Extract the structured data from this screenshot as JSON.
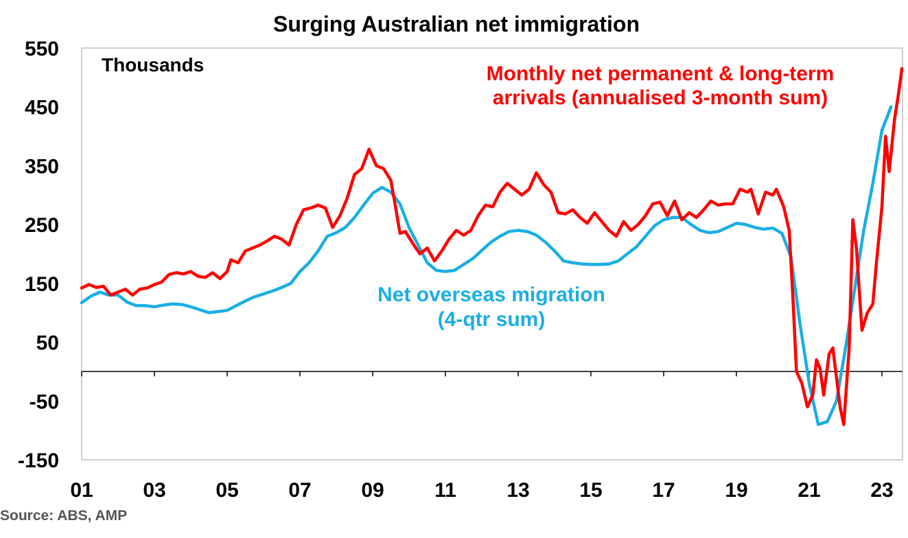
{
  "chart_data": {
    "type": "line",
    "title": "Surging Australian net immigration",
    "unit_label": "Thousands",
    "ylim": [
      -150,
      550
    ],
    "xlim": [
      2001.0,
      2023.6
    ],
    "yticks": [
      "550",
      "450",
      "350",
      "250",
      "150",
      "50",
      "-50",
      "-150"
    ],
    "ytick_values": [
      550,
      450,
      350,
      250,
      150,
      50,
      -50,
      -150
    ],
    "xticks": [
      "01",
      "03",
      "05",
      "07",
      "09",
      "11",
      "13",
      "15",
      "17",
      "19",
      "21",
      "23"
    ],
    "xtick_values": [
      2001,
      2003,
      2005,
      2007,
      2009,
      2011,
      2013,
      2015,
      2017,
      2019,
      2021,
      2023
    ],
    "grid": false,
    "series": [
      {
        "name": "Monthly net permanent & long-term arrivals (annualised 3-month sum)",
        "color": "#ff0000",
        "points": [
          [
            2001.0,
            142
          ],
          [
            2001.2,
            148
          ],
          [
            2001.4,
            143
          ],
          [
            2001.6,
            145
          ],
          [
            2001.8,
            130
          ],
          [
            2002.0,
            135
          ],
          [
            2002.2,
            140
          ],
          [
            2002.4,
            130
          ],
          [
            2002.6,
            140
          ],
          [
            2002.8,
            142
          ],
          [
            2003.0,
            148
          ],
          [
            2003.2,
            152
          ],
          [
            2003.4,
            165
          ],
          [
            2003.6,
            168
          ],
          [
            2003.8,
            166
          ],
          [
            2004.0,
            170
          ],
          [
            2004.2,
            162
          ],
          [
            2004.4,
            160
          ],
          [
            2004.6,
            168
          ],
          [
            2004.8,
            158
          ],
          [
            2005.0,
            170
          ],
          [
            2005.1,
            190
          ],
          [
            2005.3,
            185
          ],
          [
            2005.5,
            205
          ],
          [
            2005.7,
            210
          ],
          [
            2005.9,
            215
          ],
          [
            2006.1,
            222
          ],
          [
            2006.3,
            230
          ],
          [
            2006.5,
            225
          ],
          [
            2006.7,
            215
          ],
          [
            2006.9,
            250
          ],
          [
            2007.1,
            275
          ],
          [
            2007.3,
            278
          ],
          [
            2007.5,
            283
          ],
          [
            2007.7,
            278
          ],
          [
            2007.9,
            245
          ],
          [
            2008.1,
            265
          ],
          [
            2008.3,
            295
          ],
          [
            2008.5,
            335
          ],
          [
            2008.7,
            345
          ],
          [
            2008.9,
            378
          ],
          [
            2009.1,
            350
          ],
          [
            2009.3,
            345
          ],
          [
            2009.5,
            325
          ],
          [
            2009.6,
            290
          ],
          [
            2009.75,
            235
          ],
          [
            2009.9,
            238
          ],
          [
            2010.1,
            218
          ],
          [
            2010.3,
            200
          ],
          [
            2010.5,
            210
          ],
          [
            2010.7,
            188
          ],
          [
            2010.9,
            205
          ],
          [
            2011.1,
            225
          ],
          [
            2011.3,
            240
          ],
          [
            2011.5,
            232
          ],
          [
            2011.7,
            240
          ],
          [
            2011.9,
            265
          ],
          [
            2012.1,
            283
          ],
          [
            2012.3,
            280
          ],
          [
            2012.5,
            305
          ],
          [
            2012.7,
            320
          ],
          [
            2012.9,
            310
          ],
          [
            2013.1,
            300
          ],
          [
            2013.3,
            310
          ],
          [
            2013.5,
            338
          ],
          [
            2013.7,
            318
          ],
          [
            2013.9,
            305
          ],
          [
            2014.1,
            270
          ],
          [
            2014.3,
            268
          ],
          [
            2014.5,
            275
          ],
          [
            2014.7,
            262
          ],
          [
            2014.9,
            252
          ],
          [
            2015.1,
            270
          ],
          [
            2015.3,
            255
          ],
          [
            2015.5,
            240
          ],
          [
            2015.7,
            230
          ],
          [
            2015.9,
            255
          ],
          [
            2016.1,
            240
          ],
          [
            2016.3,
            250
          ],
          [
            2016.5,
            265
          ],
          [
            2016.7,
            285
          ],
          [
            2016.9,
            288
          ],
          [
            2017.1,
            265
          ],
          [
            2017.3,
            290
          ],
          [
            2017.5,
            258
          ],
          [
            2017.7,
            270
          ],
          [
            2017.9,
            262
          ],
          [
            2018.1,
            275
          ],
          [
            2018.3,
            290
          ],
          [
            2018.5,
            283
          ],
          [
            2018.7,
            285
          ],
          [
            2018.9,
            285
          ],
          [
            2019.1,
            310
          ],
          [
            2019.3,
            305
          ],
          [
            2019.4,
            310
          ],
          [
            2019.6,
            268
          ],
          [
            2019.8,
            305
          ],
          [
            2020.0,
            300
          ],
          [
            2020.1,
            310
          ],
          [
            2020.3,
            280
          ],
          [
            2020.45,
            240
          ],
          [
            2020.55,
            130
          ],
          [
            2020.65,
            0
          ],
          [
            2020.8,
            -20
          ],
          [
            2020.95,
            -60
          ],
          [
            2021.1,
            -40
          ],
          [
            2021.2,
            20
          ],
          [
            2021.3,
            5
          ],
          [
            2021.4,
            -40
          ],
          [
            2021.55,
            30
          ],
          [
            2021.65,
            40
          ],
          [
            2021.75,
            -10
          ],
          [
            2021.85,
            -60
          ],
          [
            2021.95,
            -90
          ],
          [
            2022.1,
            40
          ],
          [
            2022.2,
            258
          ],
          [
            2022.3,
            210
          ],
          [
            2022.45,
            70
          ],
          [
            2022.6,
            100
          ],
          [
            2022.75,
            115
          ],
          [
            2022.85,
            185
          ],
          [
            2023.0,
            280
          ],
          [
            2023.1,
            400
          ],
          [
            2023.2,
            340
          ],
          [
            2023.35,
            430
          ],
          [
            2023.45,
            470
          ],
          [
            2023.55,
            515
          ]
        ]
      },
      {
        "name": "Net overseas migration (4-qtr sum)",
        "color": "#1aaee5",
        "points": [
          [
            2001.0,
            117
          ],
          [
            2001.25,
            128
          ],
          [
            2001.5,
            135
          ],
          [
            2001.75,
            130
          ],
          [
            2002.0,
            130
          ],
          [
            2002.25,
            118
          ],
          [
            2002.5,
            112
          ],
          [
            2002.75,
            112
          ],
          [
            2003.0,
            110
          ],
          [
            2003.25,
            113
          ],
          [
            2003.5,
            115
          ],
          [
            2003.75,
            114
          ],
          [
            2004.0,
            110
          ],
          [
            2004.25,
            105
          ],
          [
            2004.5,
            100
          ],
          [
            2004.75,
            102
          ],
          [
            2005.0,
            104
          ],
          [
            2005.25,
            112
          ],
          [
            2005.5,
            120
          ],
          [
            2005.75,
            127
          ],
          [
            2006.0,
            132
          ],
          [
            2006.25,
            137
          ],
          [
            2006.5,
            143
          ],
          [
            2006.75,
            150
          ],
          [
            2007.0,
            170
          ],
          [
            2007.25,
            185
          ],
          [
            2007.5,
            205
          ],
          [
            2007.75,
            230
          ],
          [
            2008.0,
            236
          ],
          [
            2008.25,
            245
          ],
          [
            2008.5,
            262
          ],
          [
            2008.75,
            283
          ],
          [
            2009.0,
            303
          ],
          [
            2009.25,
            313
          ],
          [
            2009.5,
            305
          ],
          [
            2009.75,
            285
          ],
          [
            2010.0,
            245
          ],
          [
            2010.25,
            215
          ],
          [
            2010.5,
            185
          ],
          [
            2010.75,
            172
          ],
          [
            2011.0,
            170
          ],
          [
            2011.25,
            172
          ],
          [
            2011.5,
            182
          ],
          [
            2011.75,
            192
          ],
          [
            2012.0,
            206
          ],
          [
            2012.25,
            220
          ],
          [
            2012.5,
            230
          ],
          [
            2012.75,
            238
          ],
          [
            2013.0,
            240
          ],
          [
            2013.25,
            238
          ],
          [
            2013.5,
            232
          ],
          [
            2013.75,
            220
          ],
          [
            2014.0,
            205
          ],
          [
            2014.25,
            188
          ],
          [
            2014.5,
            185
          ],
          [
            2014.75,
            183
          ],
          [
            2015.0,
            182
          ],
          [
            2015.25,
            182
          ],
          [
            2015.5,
            183
          ],
          [
            2015.75,
            188
          ],
          [
            2016.0,
            200
          ],
          [
            2016.25,
            212
          ],
          [
            2016.5,
            230
          ],
          [
            2016.75,
            248
          ],
          [
            2017.0,
            258
          ],
          [
            2017.25,
            262
          ],
          [
            2017.5,
            262
          ],
          [
            2017.75,
            250
          ],
          [
            2018.0,
            240
          ],
          [
            2018.25,
            236
          ],
          [
            2018.5,
            238
          ],
          [
            2018.75,
            245
          ],
          [
            2019.0,
            252
          ],
          [
            2019.25,
            250
          ],
          [
            2019.5,
            245
          ],
          [
            2019.75,
            242
          ],
          [
            2020.0,
            244
          ],
          [
            2020.25,
            235
          ],
          [
            2020.5,
            195
          ],
          [
            2020.75,
            80
          ],
          [
            2021.0,
            -20
          ],
          [
            2021.25,
            -90
          ],
          [
            2021.5,
            -85
          ],
          [
            2021.75,
            -50
          ],
          [
            2022.0,
            40
          ],
          [
            2022.25,
            140
          ],
          [
            2022.5,
            240
          ],
          [
            2022.75,
            320
          ],
          [
            2023.0,
            410
          ],
          [
            2023.25,
            450
          ]
        ]
      }
    ],
    "annotations": [
      {
        "lines": [
          "Monthly net permanent & long-term",
          "arrivals (annualised 3-month sum)"
        ],
        "color": "#ff0000"
      },
      {
        "lines": [
          "Net overseas migration",
          "(4-qtr sum)"
        ],
        "color": "#1aaee5"
      }
    ]
  },
  "source": "Source: ABS, AMP"
}
